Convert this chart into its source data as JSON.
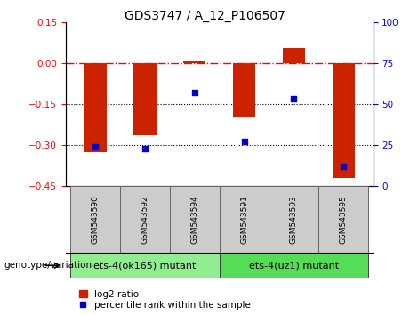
{
  "title": "GDS3747 / A_12_P106507",
  "samples": [
    "GSM543590",
    "GSM543592",
    "GSM543594",
    "GSM543591",
    "GSM543593",
    "GSM543595"
  ],
  "log2_ratio": [
    -0.325,
    -0.265,
    0.01,
    -0.195,
    0.055,
    -0.42
  ],
  "percentile_rank": [
    24,
    23,
    57,
    27,
    53,
    12
  ],
  "groups": [
    {
      "label": "ets-4(ok165) mutant",
      "indices": [
        0,
        1,
        2
      ],
      "color": "#90EE90"
    },
    {
      "label": "ets-4(uz1) mutant",
      "indices": [
        3,
        4,
        5
      ],
      "color": "#55DD55"
    }
  ],
  "ylim_left": [
    -0.45,
    0.15
  ],
  "ylim_right": [
    0,
    100
  ],
  "yticks_left": [
    -0.45,
    -0.3,
    -0.15,
    0,
    0.15
  ],
  "yticks_right": [
    0,
    25,
    50,
    75,
    100
  ],
  "dotted_lines": [
    -0.15,
    -0.3
  ],
  "bar_color": "#CC2200",
  "dot_color": "#0000CC",
  "bar_width": 0.45,
  "background_color": "#ffffff",
  "genotype_label": "genotype/variation",
  "legend_log2": "log2 ratio",
  "legend_pct": "percentile rank within the sample",
  "title_fontsize": 10,
  "tick_fontsize": 7.5,
  "sample_box_color": "#cccccc",
  "sample_label_fontsize": 6.5,
  "group_label_fontsize": 8
}
